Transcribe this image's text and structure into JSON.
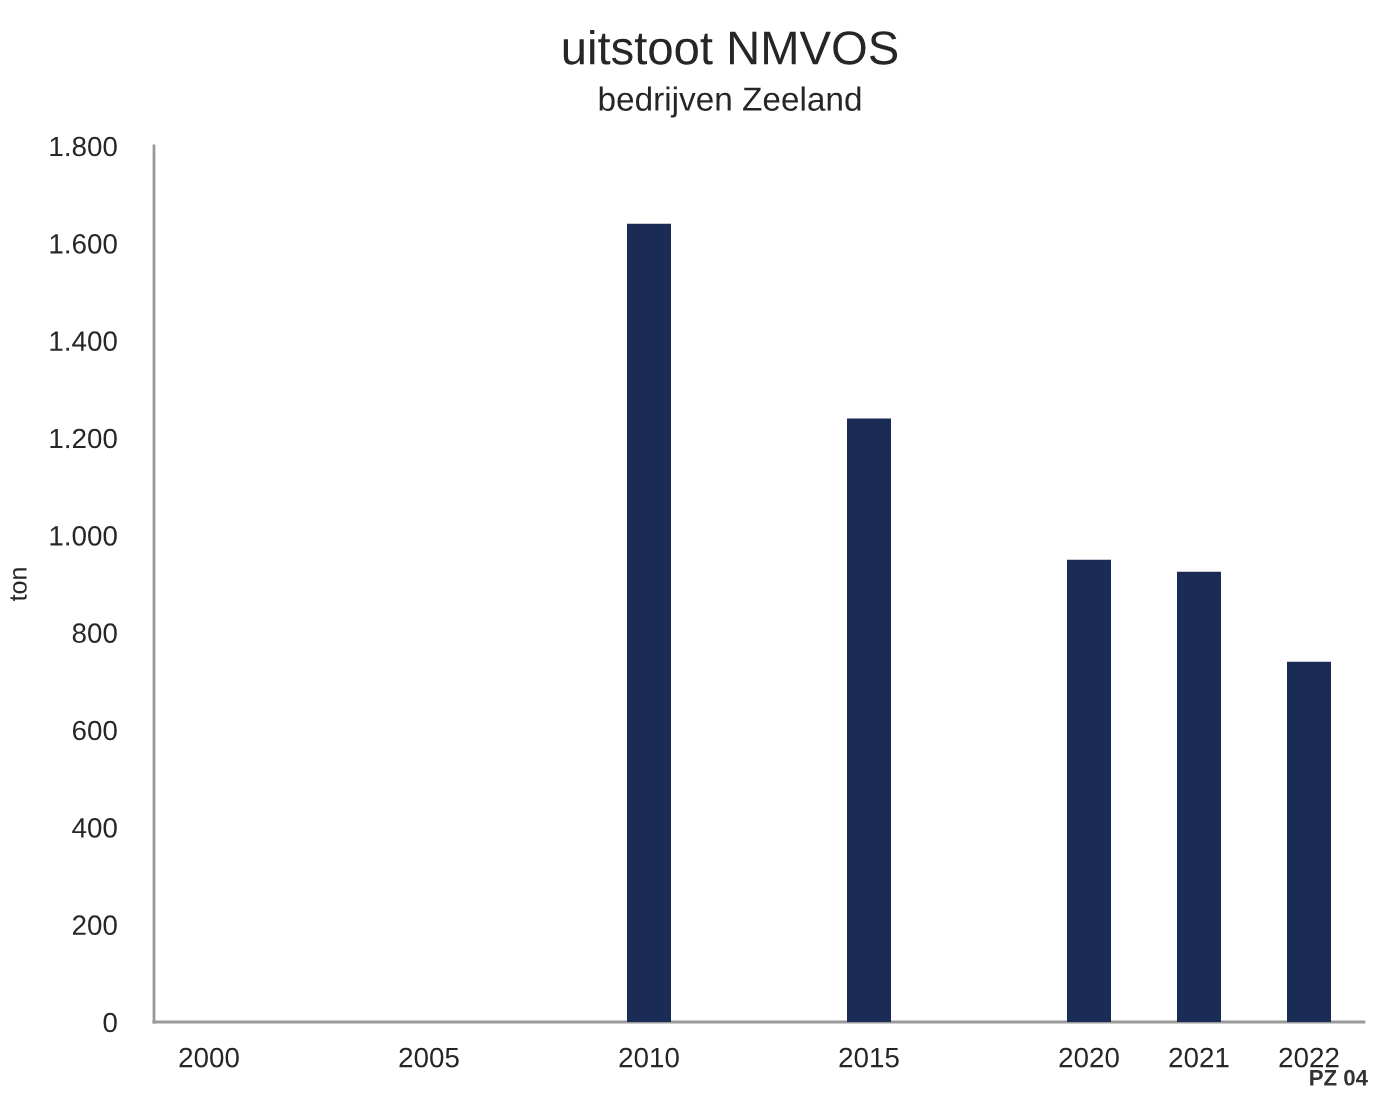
{
  "chart_data": {
    "type": "bar",
    "title": "uitstoot NMVOS",
    "subtitle": "bedrijven Zeeland",
    "ylabel": "ton",
    "categories": [
      "2000",
      null,
      "2005",
      null,
      "2010",
      null,
      "2015",
      null,
      "2020",
      "2021",
      "2022"
    ],
    "values": [
      null,
      null,
      null,
      null,
      1640,
      null,
      1240,
      null,
      950,
      925,
      740
    ],
    "color": "#1a2b55",
    "ylim": [
      0,
      1800
    ],
    "yticks": [
      0,
      200,
      400,
      600,
      800,
      {
        "value": 1000,
        "label": "1.000"
      },
      {
        "value": 1200,
        "label": "1.200"
      },
      {
        "value": 1400,
        "label": "1.400"
      },
      {
        "value": 1600,
        "label": "1.600"
      },
      {
        "value": 1800,
        "label": "1.800"
      }
    ],
    "annotations": [
      "PZ 04"
    ]
  }
}
